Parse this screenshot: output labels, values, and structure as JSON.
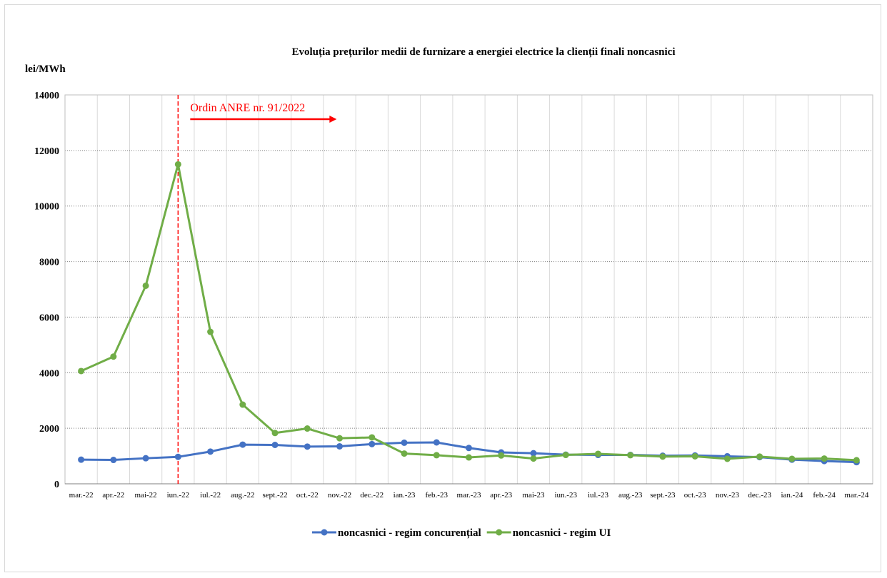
{
  "chart_data": {
    "type": "line",
    "title": "Evoluția prețurilor medii de furnizare a energiei electrice la clienții finali noncasnici",
    "ylabel": "lei/MWh",
    "xlabel": "",
    "ylim": [
      0,
      14000
    ],
    "yticks": [
      "0",
      "2000",
      "4000",
      "6000",
      "8000",
      "10000",
      "12000",
      "14000"
    ],
    "grid": "horizontal dotted, vertical light",
    "legend_position": "bottom",
    "categories": [
      "mar.-22",
      "apr.-22",
      "mai-22",
      "iun.-22",
      "iul.-22",
      "aug.-22",
      "sept.-22",
      "oct.-22",
      "nov.-22",
      "dec.-22",
      "ian.-23",
      "feb.-23",
      "mar.-23",
      "apr.-23",
      "mai-23",
      "iun.-23",
      "iul.-23",
      "aug.-23",
      "sept.-23",
      "oct.-23",
      "nov.-23",
      "dec.-23",
      "ian.-24",
      "feb.-24",
      "mar.-24"
    ],
    "series": [
      {
        "name": "noncasnici - regim concurențial",
        "color": "#4472c4",
        "values": [
          870,
          860,
          920,
          970,
          1160,
          1410,
          1400,
          1340,
          1350,
          1430,
          1480,
          1490,
          1290,
          1130,
          1100,
          1050,
          1040,
          1040,
          1010,
          1020,
          990,
          960,
          870,
          820,
          780
        ]
      },
      {
        "name": "noncasnici - regim UI",
        "color": "#70ad47",
        "values": [
          4060,
          4580,
          7130,
          11500,
          5470,
          2850,
          1830,
          1990,
          1640,
          1670,
          1090,
          1030,
          950,
          1020,
          910,
          1040,
          1080,
          1030,
          980,
          990,
          900,
          980,
          900,
          910,
          850
        ]
      }
    ],
    "annotation": {
      "text": "Ordin ANRE nr. 91/2022",
      "at_category": "iun.-22",
      "color": "#ff0000"
    }
  }
}
